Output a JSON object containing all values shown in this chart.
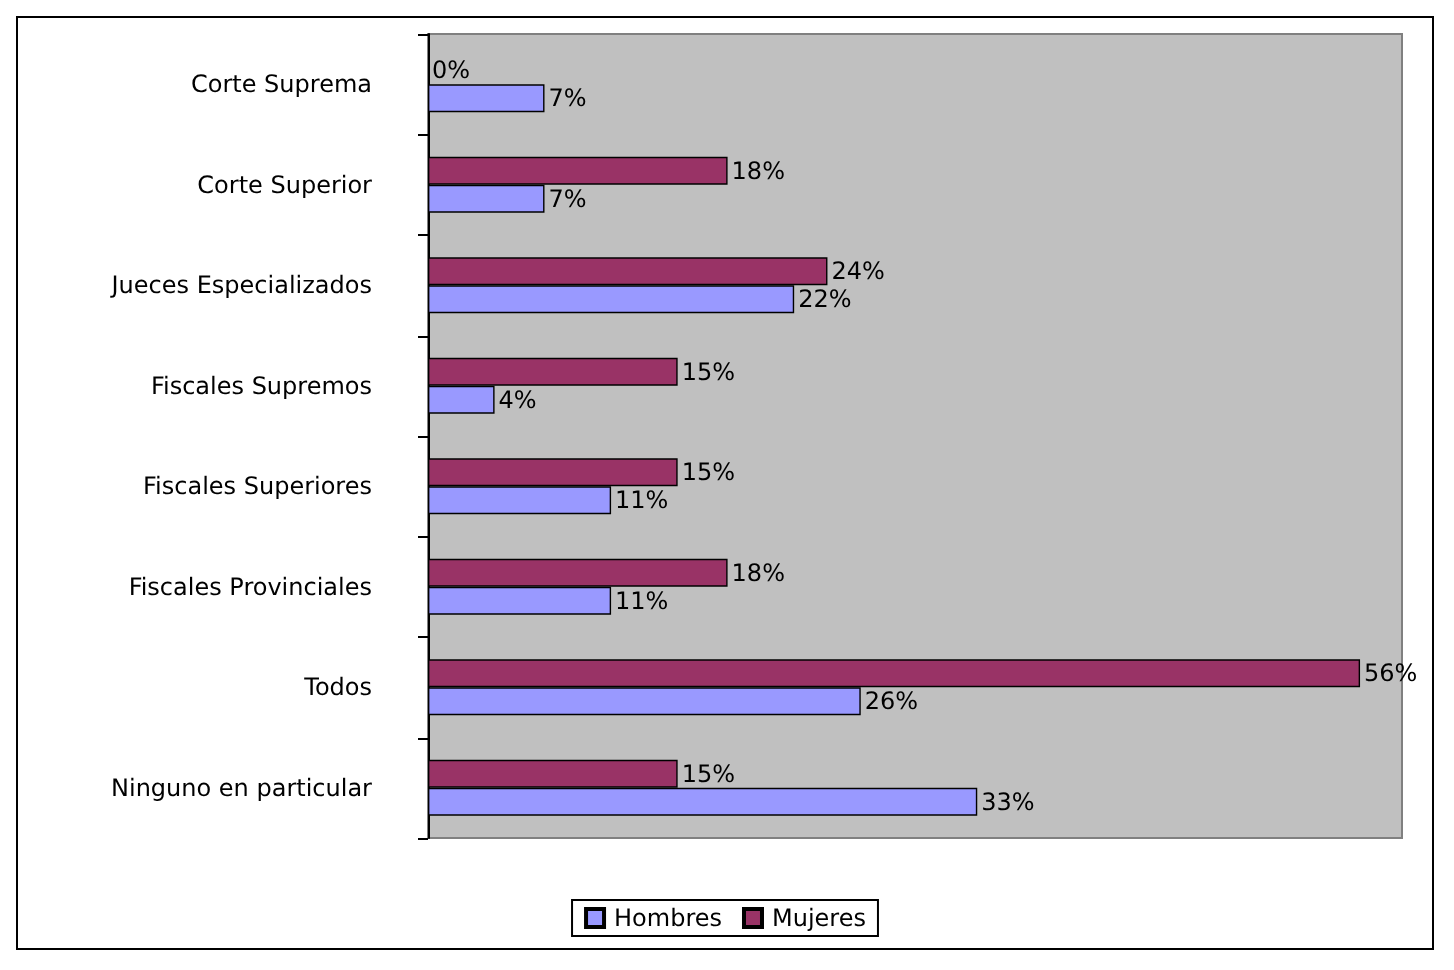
{
  "chart_data": {
    "type": "bar",
    "orientation": "horizontal",
    "categories": [
      "Corte Suprema",
      "Corte Superior",
      "Jueces Especializados",
      "Fiscales Supremos",
      "Fiscales Superiores",
      "Fiscales Provinciales",
      "Todos",
      "Ninguno en particular"
    ],
    "series": [
      {
        "name": "Mujeres",
        "color": "#993366",
        "values": [
          0,
          18,
          24,
          15,
          15,
          18,
          56,
          15
        ],
        "value_labels": [
          "0%",
          "18%",
          "24%",
          "15%",
          "15%",
          "18%",
          "56%",
          "15%"
        ]
      },
      {
        "name": "Hombres",
        "color": "#9999ff",
        "values": [
          7,
          7,
          22,
          4,
          11,
          11,
          26,
          33
        ],
        "value_labels": [
          "7%",
          "7%",
          "22%",
          "4%",
          "11%",
          "11%",
          "26%",
          "33%"
        ]
      }
    ],
    "legend": "bottom",
    "grid": false
  }
}
